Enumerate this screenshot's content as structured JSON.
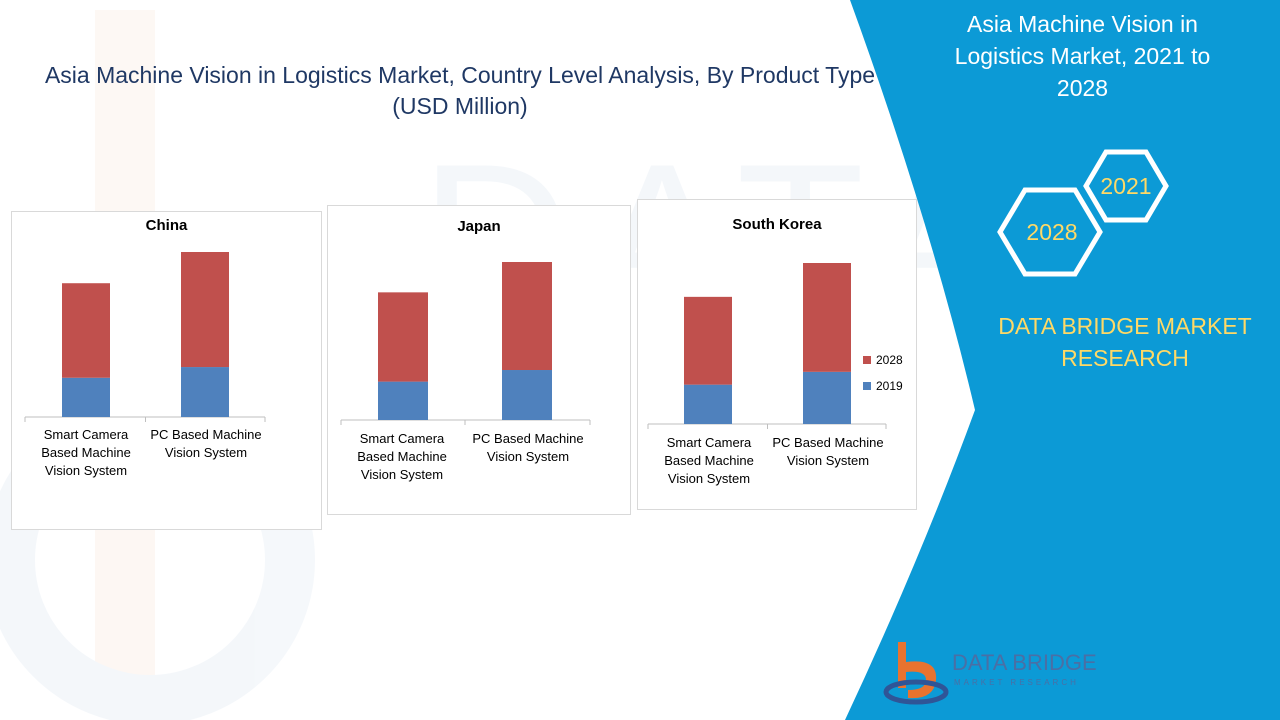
{
  "title": "Asia Machine Vision in Logistics Market, Country Level Analysis, By Product Type (USD Million)",
  "sidebar": {
    "title": "Asia Machine Vision in Logistics Market, 2021 to 2028",
    "hex_labels": [
      "2021",
      "2028"
    ],
    "brand": "DATA BRIDGE MARKET RESEARCH"
  },
  "logo": {
    "name": "DATA BRIDGE",
    "sub": "MARKET RESEARCH"
  },
  "colors": {
    "series_2019": "#4f81bd",
    "series_2028": "#c0504d",
    "sidebar": "#0c9ad6",
    "accent": "#ffd966",
    "title": "#1f3864"
  },
  "chart_data": [
    {
      "type": "bar",
      "stacked": true,
      "title": "China",
      "categories": [
        "Smart Camera Based Machine Vision System",
        "PC Based Machine Vision System"
      ],
      "series": [
        {
          "name": "2019",
          "values": [
            44,
            56
          ]
        },
        {
          "name": "2028",
          "values": [
            106,
            129
          ]
        }
      ],
      "ylim": [
        0,
        200
      ],
      "legend": "none"
    },
    {
      "type": "bar",
      "stacked": true,
      "title": "Japan",
      "categories": [
        "Smart Camera Based Machine Vision System",
        "PC Based Machine Vision System"
      ],
      "series": [
        {
          "name": "2019",
          "values": [
            43,
            56
          ]
        },
        {
          "name": "2028",
          "values": [
            100,
            121
          ]
        }
      ],
      "ylim": [
        0,
        200
      ],
      "legend": "none"
    },
    {
      "type": "bar",
      "stacked": true,
      "title": "South Korea",
      "categories": [
        "Smart Camera Based Machine Vision System",
        "PC Based Machine Vision System"
      ],
      "series": [
        {
          "name": "2019",
          "values": [
            43,
            57
          ]
        },
        {
          "name": "2028",
          "values": [
            96,
            119
          ]
        }
      ],
      "ylim": [
        0,
        200
      ],
      "legend": "right"
    }
  ]
}
